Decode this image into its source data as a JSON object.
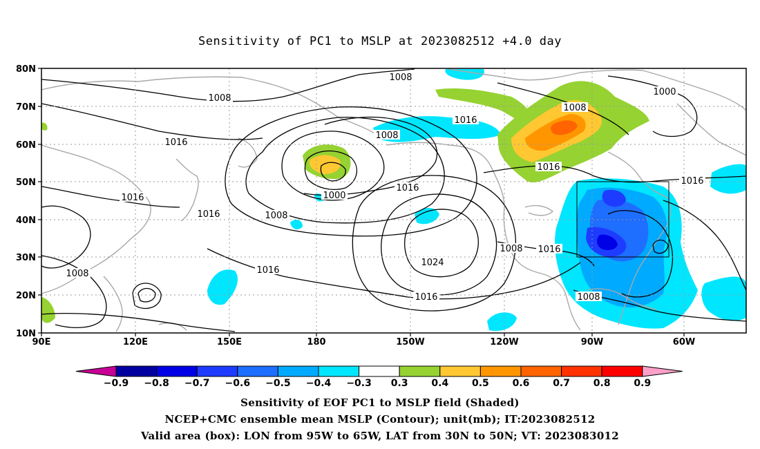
{
  "title": "Sensitivity of PC1 to MSLP at 2023082512 +4.0 day",
  "map": {
    "lat_labels": [
      "80N",
      "70N",
      "60N",
      "50N",
      "40N",
      "30N",
      "20N",
      "10N"
    ],
    "lon_labels": [
      "90E",
      "120E",
      "150E",
      "180",
      "150W",
      "120W",
      "90W",
      "60W"
    ],
    "lat_range": [
      10,
      80
    ],
    "lon_range": [
      "90E",
      "40W"
    ],
    "grid": "dotted",
    "valid_box": {
      "lon_from": "95W",
      "lon_to": "65W",
      "lat_from": "30N",
      "lat_to": "50N"
    },
    "contour_labels": [
      "1008",
      "1008",
      "1008",
      "1008",
      "1008",
      "1008",
      "1008",
      "1008",
      "1000",
      "1000",
      "1016",
      "1016",
      "1016",
      "1016",
      "1016",
      "1016",
      "1016",
      "1016",
      "1016",
      "1016",
      "1024"
    ]
  },
  "colorbar": {
    "labels": [
      "−0.9",
      "−0.8",
      "−0.7",
      "−0.6",
      "−0.5",
      "−0.4",
      "−0.3",
      "0.3",
      "0.4",
      "0.5",
      "0.6",
      "0.7",
      "0.8",
      "0.9"
    ],
    "colors": [
      "#0000a0",
      "#0000e6",
      "#1e3cff",
      "#1e6eff",
      "#00aaff",
      "#00e6ff",
      "#ffffff",
      "#96d232",
      "#ffc832",
      "#ff9600",
      "#ff6400",
      "#ff3200",
      "#ff0000"
    ],
    "low_end_color": "#c80096",
    "high_end_color": "#ffa0c8"
  },
  "captions": {
    "line1": "Sensitivity of EOF PC1 to MSLP field (Shaded)",
    "line2": "NCEP+CMC ensemble mean MSLP (Contour); unit(mb); IT:2023082512",
    "line3": "Valid area (box): LON from 95W to 65W, LAT from 30N to 50N; VT: 2023083012"
  }
}
